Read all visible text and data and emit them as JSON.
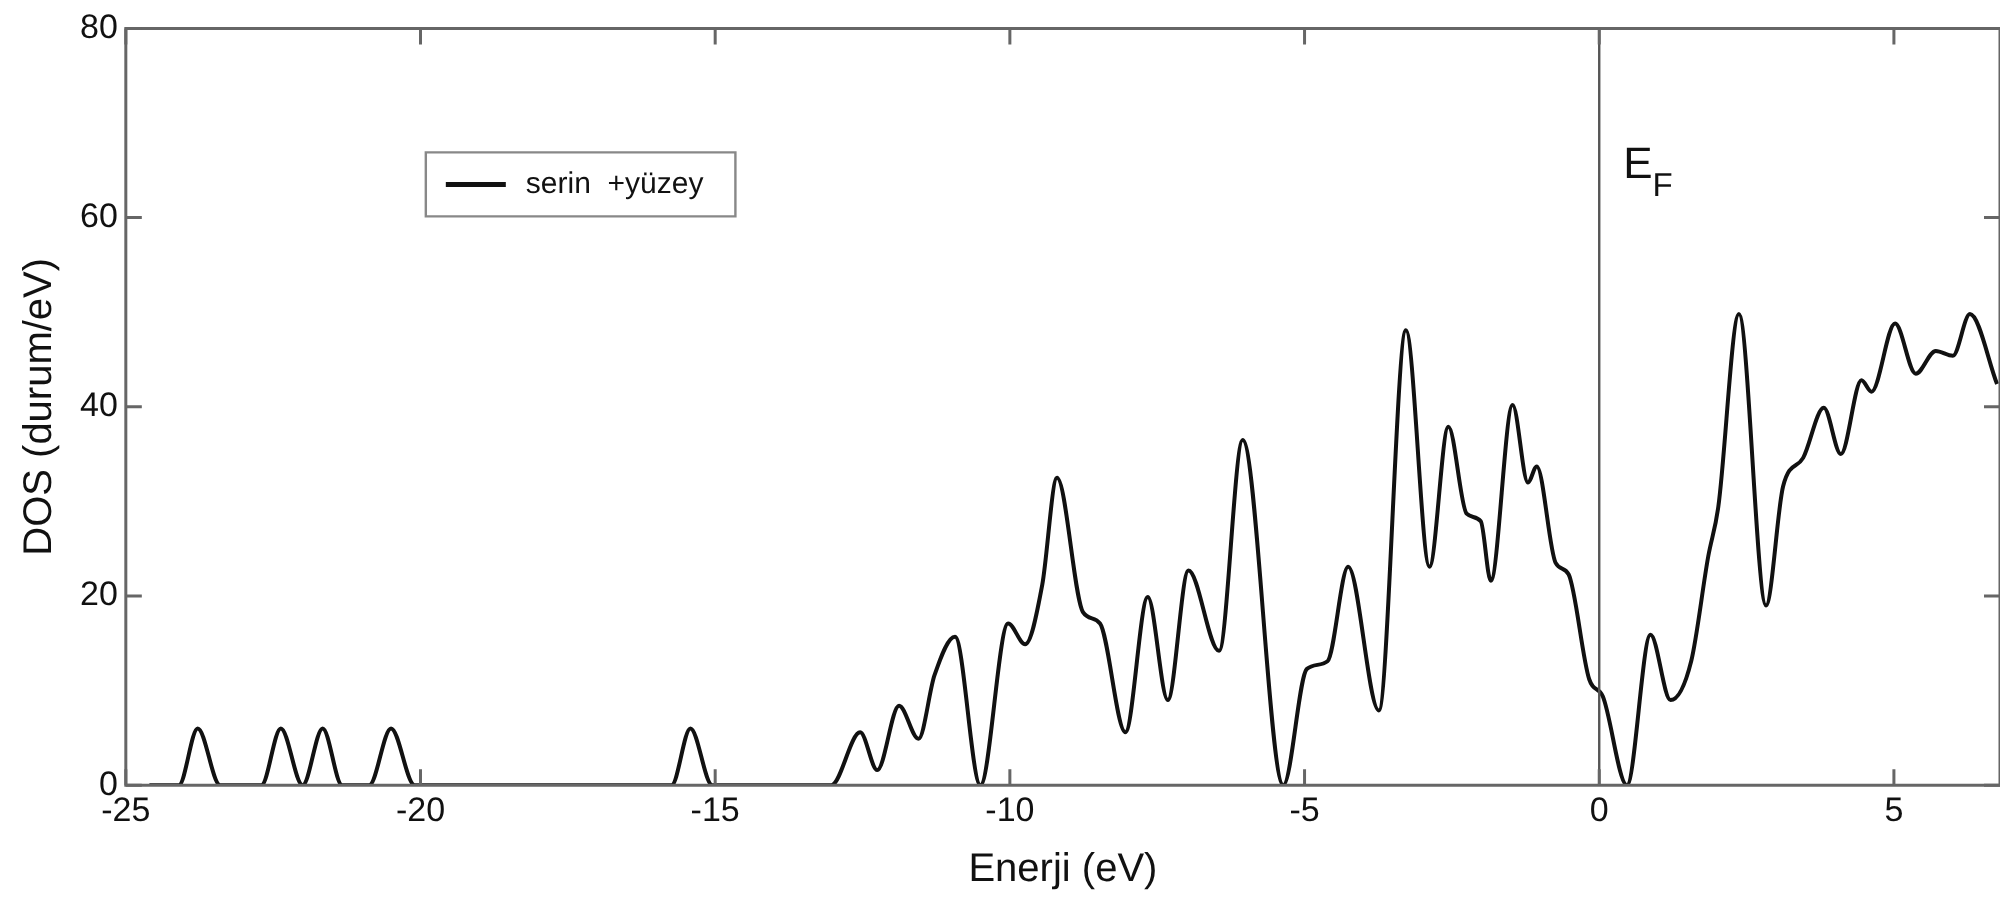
{
  "chart_data": {
    "type": "line",
    "xlabel": "Enerji (eV)",
    "ylabel": "DOS (durum/eV)",
    "xlim": [
      -25,
      6.8
    ],
    "xticks": [
      -25,
      -20,
      -15,
      -10,
      -5,
      0,
      5
    ],
    "ylim": [
      0,
      80
    ],
    "yticks": [
      0,
      20,
      40,
      60,
      80
    ],
    "grid": false,
    "legend": "top left",
    "marker": "none",
    "line_style": "solid",
    "ref_lines": [
      {
        "axis": "x",
        "value": 0,
        "label": "E$_{F}$",
        "color": "#555555"
      }
    ],
    "series": [
      {
        "name": "serin  +yüzey",
        "color": "#111111",
        "x": [
          -24.6,
          -24.1,
          -23.78,
          -23.4,
          -22.7,
          -22.37,
          -22.0,
          -21.66,
          -21.33,
          -20.87,
          -20.5,
          -20.1,
          -15.74,
          -15.42,
          -15.05,
          -14.76,
          -13.03,
          -12.54,
          -12.25,
          -11.88,
          -11.55,
          -11.28,
          -10.93,
          -10.5,
          -10.03,
          -9.74,
          -9.45,
          -9.2,
          -8.76,
          -8.47,
          -8.04,
          -7.66,
          -7.32,
          -6.97,
          -6.45,
          -6.05,
          -5.36,
          -4.96,
          -4.61,
          -4.26,
          -3.74,
          -3.28,
          -2.88,
          -2.56,
          -2.25,
          -2.01,
          -1.84,
          -1.47,
          -1.21,
          -1.06,
          -0.74,
          -0.52,
          -0.17,
          0.06,
          0.47,
          0.87,
          1.21,
          1.56,
          1.85,
          2.02,
          2.37,
          2.83,
          3.12,
          3.46,
          3.81,
          4.1,
          4.45,
          4.62,
          5.02,
          5.37,
          5.71,
          6.0,
          6.29,
          6.75
        ],
        "values": [
          0,
          0,
          6,
          0,
          0,
          6,
          0,
          6,
          0,
          0,
          6,
          0,
          0,
          6,
          0,
          0,
          0,
          5.6,
          1.6,
          8.4,
          4.9,
          11.6,
          15.7,
          0,
          17.1,
          14.9,
          21.2,
          32.5,
          18.3,
          17.1,
          5.6,
          19.9,
          9.0,
          22.7,
          14.2,
          36.5,
          0,
          12.3,
          13.1,
          23.1,
          7.9,
          48.1,
          23.1,
          37.9,
          28.7,
          27.9,
          21.6,
          40.2,
          32.0,
          33.7,
          23.5,
          22.3,
          11.2,
          9.4,
          0,
          15.9,
          9.0,
          13.1,
          24.2,
          29.4,
          49.8,
          19.0,
          31.6,
          34.6,
          39.9,
          35.0,
          42.8,
          41.6,
          48.8,
          43.5,
          45.9,
          45.4,
          49.8,
          42.4
        ]
      }
    ]
  }
}
